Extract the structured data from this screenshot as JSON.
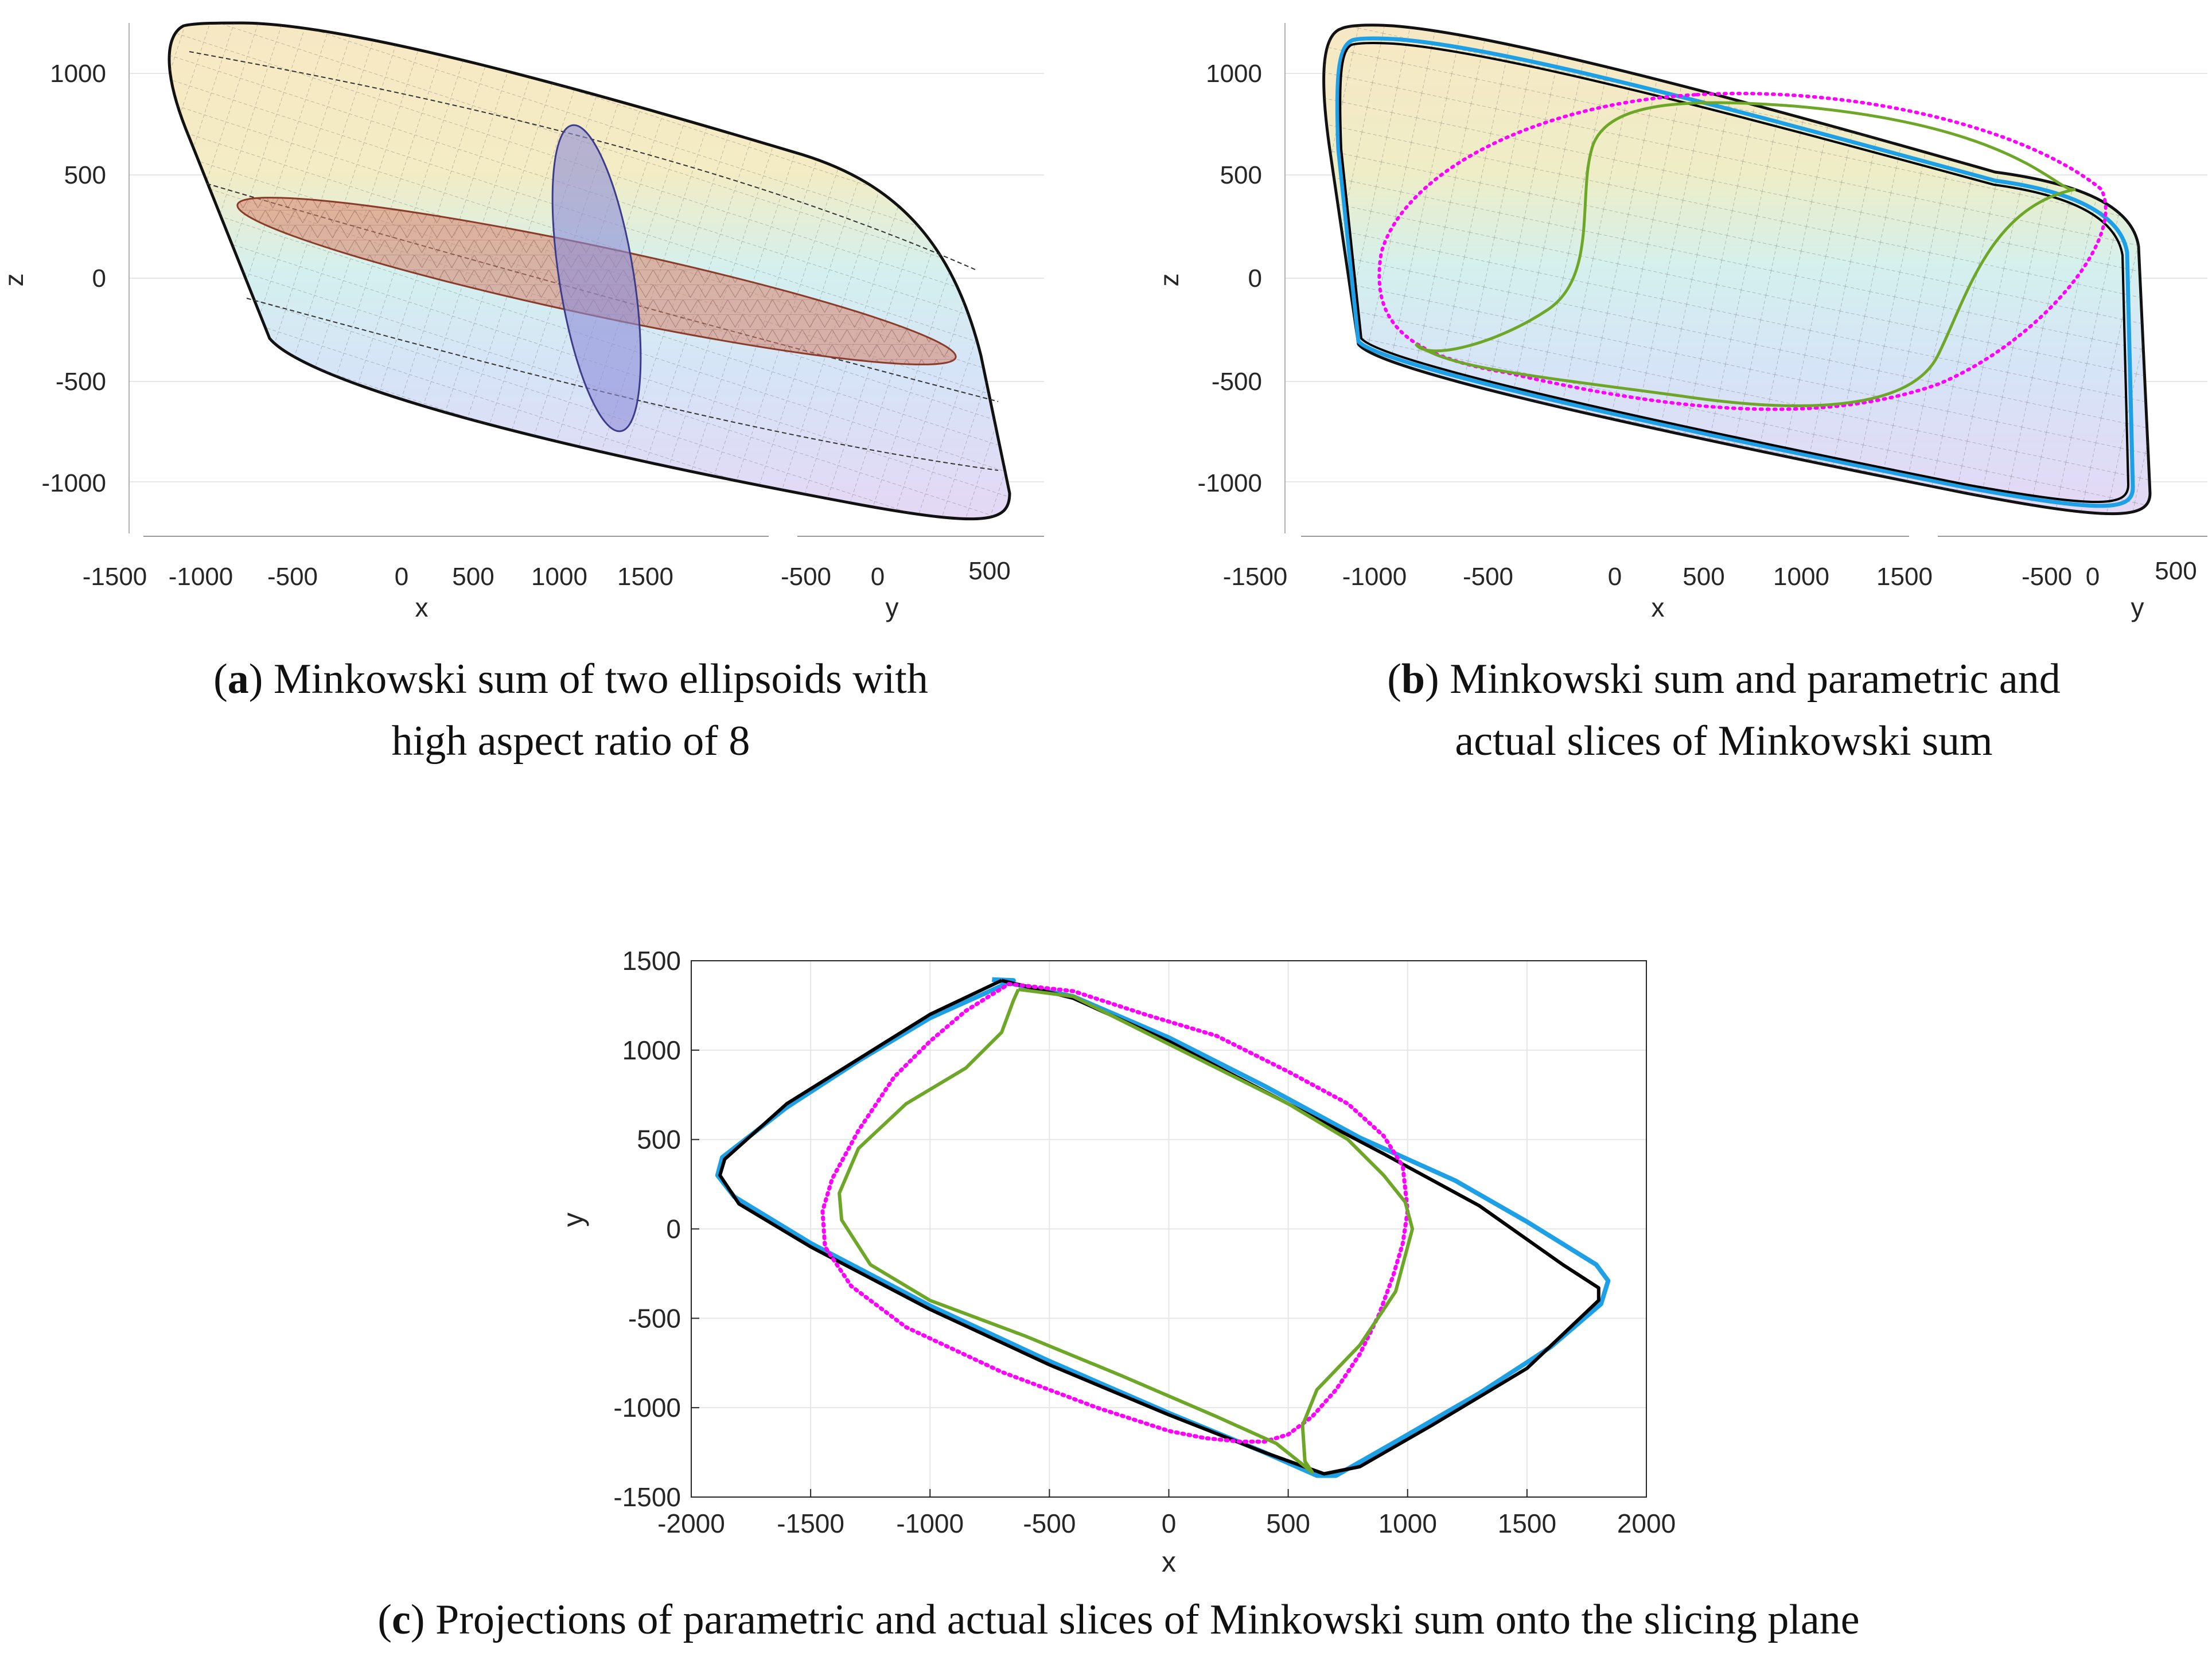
{
  "captions": {
    "a": {
      "tag": "a",
      "text": "Minkowski sum of two ellipsoids with",
      "text2": "high aspect ratio of 8"
    },
    "b": {
      "tag": "b",
      "text": "Minkowski sum and parametric and",
      "text2": "actual slices of Minkowski sum"
    },
    "c": {
      "tag": "c",
      "text": "Projections of parametric and actual slices of Minkowski sum onto the slicing plane"
    }
  },
  "colors": {
    "black": "#000000",
    "blue": "#1ea0e6",
    "magenta": "#ff00ff",
    "green": "#6ea628",
    "orange_ellipsoid": "#d9826a",
    "blue_ellipsoid": "#8c8cd9",
    "grid": "#e6e6e6",
    "axis": "#262626"
  },
  "chart_data": [
    {
      "id": "a",
      "type": "surface3d",
      "title": "",
      "xlabel": "x",
      "ylabel": "y",
      "zlabel": "z",
      "z_ticks": [
        1000,
        500,
        0,
        -500,
        -1000
      ],
      "x_ticks": [
        "-1500",
        "-1000",
        "-500",
        "0",
        "500",
        "1000",
        "1500"
      ],
      "y_ticks": [
        "-500",
        "0",
        "500"
      ],
      "series": [
        {
          "name": "Minkowski sum",
          "kind": "wireframe"
        },
        {
          "name": "Ellipsoid 1",
          "kind": "surface",
          "color": "orange"
        },
        {
          "name": "Ellipsoid 2",
          "kind": "surface",
          "color": "blue"
        }
      ]
    },
    {
      "id": "b",
      "type": "surface3d",
      "title": "",
      "xlabel": "x",
      "ylabel": "y",
      "zlabel": "z",
      "z_ticks": [
        1000,
        500,
        0,
        -500,
        -1000
      ],
      "x_ticks": [
        "-1500",
        "-1000",
        "-500",
        "0",
        "500",
        "1000",
        "1500"
      ],
      "y_ticks": [
        "-500",
        "0",
        "500"
      ],
      "series": [
        {
          "name": "Minkowski sum",
          "kind": "wireframe"
        },
        {
          "name": "Parametric slice",
          "kind": "line",
          "color": "blue"
        },
        {
          "name": "Actual slice",
          "kind": "line",
          "color": "black"
        },
        {
          "name": "Parametric slice (inner)",
          "kind": "points",
          "color": "magenta"
        },
        {
          "name": "Actual slice (inner)",
          "kind": "line",
          "color": "green"
        }
      ]
    },
    {
      "id": "c",
      "type": "line",
      "title": "",
      "xlabel": "x",
      "ylabel": "y",
      "xlim": [
        -2000,
        2000
      ],
      "ylim": [
        -1500,
        1500
      ],
      "x_ticks": [
        -2000,
        -1500,
        -1000,
        -500,
        0,
        500,
        1000,
        1500,
        2000
      ],
      "y_ticks": [
        1500,
        1000,
        500,
        0,
        -500,
        -1000,
        -1500
      ],
      "grid": true,
      "series": [
        {
          "name": "Actual slice",
          "color": "black",
          "kind": "line",
          "points": [
            [
              -700,
              1390
            ],
            [
              -1000,
              1200
            ],
            [
              -1300,
              950
            ],
            [
              -1600,
              700
            ],
            [
              -1860,
              390
            ],
            [
              -1880,
              300
            ],
            [
              -1800,
              140
            ],
            [
              -1500,
              -100
            ],
            [
              -1000,
              -450
            ],
            [
              -500,
              -760
            ],
            [
              0,
              -1040
            ],
            [
              400,
              -1250
            ],
            [
              650,
              -1370
            ],
            [
              800,
              -1330
            ],
            [
              1100,
              -1100
            ],
            [
              1500,
              -780
            ],
            [
              1800,
              -400
            ],
            [
              1800,
              -330
            ],
            [
              1650,
              -200
            ],
            [
              1300,
              130
            ],
            [
              900,
              420
            ],
            [
              500,
              700
            ],
            [
              0,
              1050
            ],
            [
              -400,
              1290
            ],
            [
              -700,
              1390
            ]
          ]
        },
        {
          "name": "Parametric slice",
          "color": "blue",
          "kind": "line",
          "points": [
            [
              -740,
              1395
            ],
            [
              -650,
              1390
            ],
            [
              -1000,
              1180
            ],
            [
              -1300,
              940
            ],
            [
              -1600,
              680
            ],
            [
              -1870,
              400
            ],
            [
              -1890,
              300
            ],
            [
              -1820,
              180
            ],
            [
              -1500,
              -80
            ],
            [
              -1000,
              -430
            ],
            [
              -500,
              -740
            ],
            [
              0,
              -1030
            ],
            [
              400,
              -1250
            ],
            [
              620,
              -1380
            ],
            [
              700,
              -1380
            ],
            [
              950,
              -1190
            ],
            [
              1300,
              -920
            ],
            [
              1600,
              -660
            ],
            [
              1810,
              -420
            ],
            [
              1840,
              -290
            ],
            [
              1790,
              -200
            ],
            [
              1500,
              40
            ],
            [
              1200,
              270
            ],
            [
              800,
              510
            ],
            [
              400,
              800
            ],
            [
              0,
              1070
            ],
            [
              -400,
              1300
            ],
            [
              -740,
              1395
            ]
          ]
        },
        {
          "name": "Parametric slice (inner)",
          "color": "magenta",
          "kind": "points",
          "points": [
            [
              -670,
              1370
            ],
            [
              -600,
              1360
            ],
            [
              -400,
              1330
            ],
            [
              -100,
              1200
            ],
            [
              200,
              1080
            ],
            [
              500,
              880
            ],
            [
              750,
              700
            ],
            [
              900,
              520
            ],
            [
              980,
              350
            ],
            [
              1000,
              100
            ],
            [
              980,
              -80
            ],
            [
              940,
              -260
            ],
            [
              880,
              -480
            ],
            [
              800,
              -700
            ],
            [
              700,
              -900
            ],
            [
              600,
              -1050
            ],
            [
              500,
              -1150
            ],
            [
              400,
              -1190
            ],
            [
              300,
              -1190
            ],
            [
              150,
              -1170
            ],
            [
              0,
              -1130
            ],
            [
              -300,
              -1000
            ],
            [
              -700,
              -800
            ],
            [
              -1100,
              -550
            ],
            [
              -1330,
              -320
            ],
            [
              -1440,
              -100
            ],
            [
              -1450,
              100
            ],
            [
              -1410,
              280
            ],
            [
              -1300,
              550
            ],
            [
              -1150,
              850
            ],
            [
              -1000,
              1050
            ],
            [
              -850,
              1220
            ],
            [
              -670,
              1370
            ]
          ]
        },
        {
          "name": "Actual slice (inner)",
          "color": "green",
          "kind": "line",
          "points": [
            [
              -630,
              1340
            ],
            [
              -650,
              1280
            ],
            [
              -700,
              1100
            ],
            [
              -850,
              900
            ],
            [
              -1100,
              700
            ],
            [
              -1300,
              450
            ],
            [
              -1380,
              200
            ],
            [
              -1370,
              50
            ],
            [
              -1250,
              -200
            ],
            [
              -1000,
              -400
            ],
            [
              -600,
              -600
            ],
            [
              -200,
              -820
            ],
            [
              200,
              -1050
            ],
            [
              450,
              -1200
            ],
            [
              600,
              -1360
            ],
            [
              570,
              -1300
            ],
            [
              560,
              -1100
            ],
            [
              620,
              -900
            ],
            [
              800,
              -650
            ],
            [
              950,
              -350
            ],
            [
              1020,
              0
            ],
            [
              990,
              150
            ],
            [
              900,
              300
            ],
            [
              750,
              500
            ],
            [
              500,
              700
            ],
            [
              200,
              900
            ],
            [
              -100,
              1100
            ],
            [
              -400,
              1300
            ],
            [
              -630,
              1340
            ]
          ]
        }
      ]
    }
  ]
}
